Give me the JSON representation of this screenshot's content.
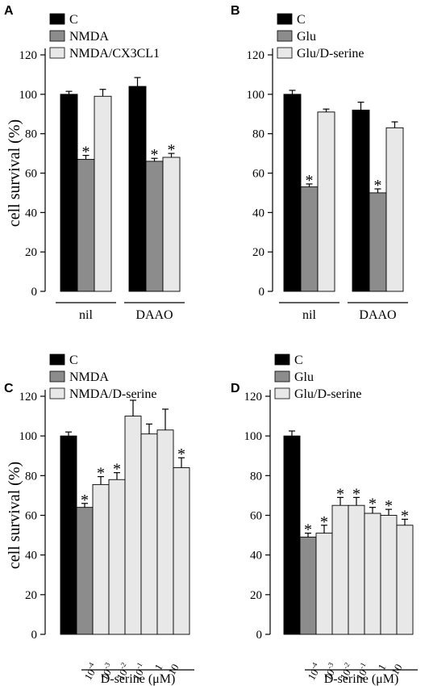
{
  "colors": {
    "C": "#000000",
    "treat": "#8c8c8c",
    "combo": "#e8e8e8",
    "axis": "#000000"
  },
  "chart_data": [
    {
      "panel": "A",
      "type": "bar",
      "ylabel": "cell survival (%)",
      "ylim": [
        0,
        120
      ],
      "yticks": [
        0,
        20,
        40,
        60,
        80,
        100,
        120
      ],
      "legend": [
        "C",
        "NMDA",
        "NMDA/CX3CL1"
      ],
      "groups": [
        "nil",
        "DAAO"
      ],
      "series": [
        {
          "name": "C",
          "values": [
            100,
            104
          ],
          "errors": [
            1.5,
            4.5
          ]
        },
        {
          "name": "NMDA",
          "values": [
            67,
            66
          ],
          "errors": [
            2,
            1.5
          ]
        },
        {
          "name": "NMDA/CX3CL1",
          "values": [
            99,
            68
          ],
          "errors": [
            3.5,
            2
          ]
        }
      ],
      "significance": [
        [
          false,
          false
        ],
        [
          true,
          true
        ],
        [
          false,
          true
        ]
      ]
    },
    {
      "panel": "B",
      "type": "bar",
      "ylabel": "",
      "ylim": [
        0,
        120
      ],
      "yticks": [
        0,
        20,
        40,
        60,
        80,
        100,
        120
      ],
      "legend": [
        "C",
        "Glu",
        "Glu/D-serine"
      ],
      "groups": [
        "nil",
        "DAAO"
      ],
      "series": [
        {
          "name": "C",
          "values": [
            100,
            92
          ],
          "errors": [
            2,
            4
          ]
        },
        {
          "name": "Glu",
          "values": [
            53,
            50
          ],
          "errors": [
            1.5,
            2
          ]
        },
        {
          "name": "Glu/D-serine",
          "values": [
            91,
            83
          ],
          "errors": [
            1.5,
            3
          ]
        }
      ],
      "significance": [
        [
          false,
          false
        ],
        [
          true,
          true
        ],
        [
          false,
          false
        ]
      ]
    },
    {
      "panel": "C",
      "type": "bar",
      "ylabel": "cell survival (%)",
      "ylim": [
        0,
        120
      ],
      "yticks": [
        0,
        20,
        40,
        60,
        80,
        100,
        120
      ],
      "legend": [
        "C",
        "NMDA",
        "NMDA/D-serine"
      ],
      "xlabel_prefix": "D-serine",
      "xlabel_unit": "(μM)",
      "dose_ticks": [
        {
          "base": "10",
          "exp": "-4"
        },
        {
          "base": "10",
          "exp": "-3"
        },
        {
          "base": "10",
          "exp": "-2"
        },
        {
          "base": "10",
          "exp": "-1"
        },
        {
          "base": "1",
          "exp": ""
        },
        {
          "base": "10",
          "exp": ""
        }
      ],
      "bars": [
        {
          "series": "C",
          "value": 100,
          "error": 2,
          "sig": false
        },
        {
          "series": "NMDA",
          "value": 64,
          "error": 2,
          "sig": true
        },
        {
          "series": "NMDA/D-serine",
          "value": 75.5,
          "error": 4,
          "sig": true
        },
        {
          "series": "NMDA/D-serine",
          "value": 78,
          "error": 3.5,
          "sig": true
        },
        {
          "series": "NMDA/D-serine",
          "value": 110,
          "error": 8,
          "sig": false
        },
        {
          "series": "NMDA/D-serine",
          "value": 101,
          "error": 5,
          "sig": false
        },
        {
          "series": "NMDA/D-serine",
          "value": 103,
          "error": 10.5,
          "sig": false
        },
        {
          "series": "NMDA/D-serine",
          "value": 84,
          "error": 5,
          "sig": true
        }
      ]
    },
    {
      "panel": "D",
      "type": "bar",
      "ylabel": "",
      "ylim": [
        0,
        120
      ],
      "yticks": [
        0,
        20,
        40,
        60,
        80,
        100,
        120
      ],
      "legend": [
        "C",
        "Glu",
        "Glu/D-serine"
      ],
      "xlabel_prefix": "D-serine",
      "xlabel_unit": "(μM)",
      "dose_ticks": [
        {
          "base": "10",
          "exp": "-4"
        },
        {
          "base": "10",
          "exp": "-3"
        },
        {
          "base": "10",
          "exp": "-2"
        },
        {
          "base": "10",
          "exp": "-1"
        },
        {
          "base": "1",
          "exp": ""
        },
        {
          "base": "10",
          "exp": ""
        }
      ],
      "bars": [
        {
          "series": "C",
          "value": 100,
          "error": 2.5,
          "sig": false
        },
        {
          "series": "Glu",
          "value": 49,
          "error": 2,
          "sig": true
        },
        {
          "series": "Glu/D-serine",
          "value": 51,
          "error": 4,
          "sig": true
        },
        {
          "series": "Glu/D-serine",
          "value": 65,
          "error": 4,
          "sig": true
        },
        {
          "series": "Glu/D-serine",
          "value": 65,
          "error": 4,
          "sig": true
        },
        {
          "series": "Glu/D-serine",
          "value": 61,
          "error": 3,
          "sig": true
        },
        {
          "series": "Glu/D-serine",
          "value": 60,
          "error": 3,
          "sig": true
        },
        {
          "series": "Glu/D-serine",
          "value": 55,
          "error": 3,
          "sig": true
        }
      ]
    }
  ]
}
